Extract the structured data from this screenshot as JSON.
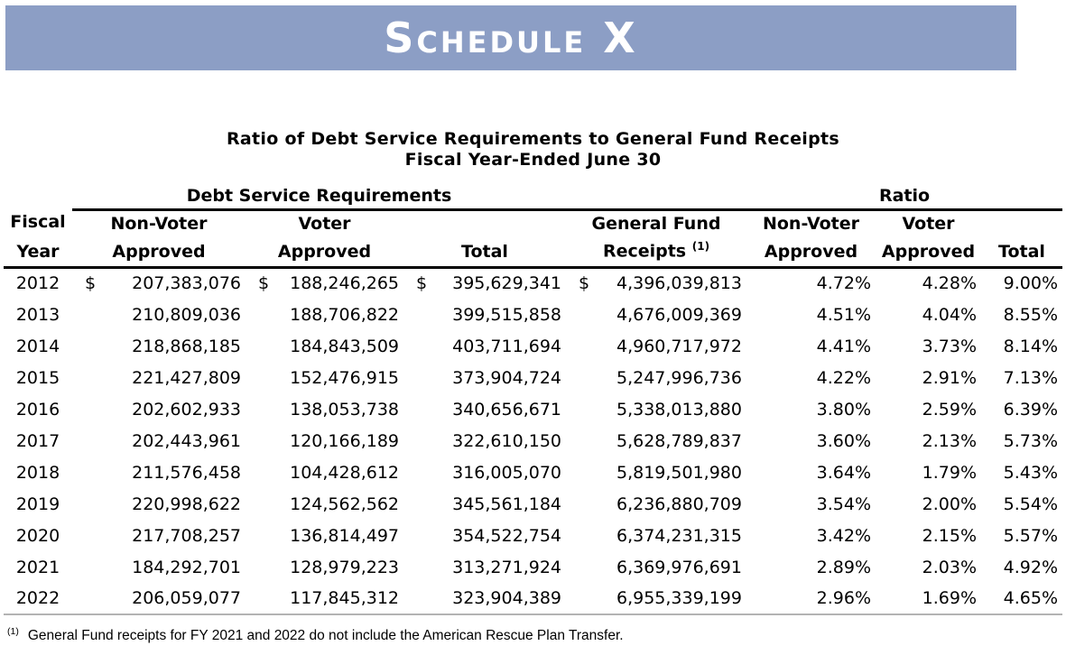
{
  "colors": {
    "banner_bg": "#8C9EC5",
    "banner_text": "#FFFFFF",
    "rule_dark": "#000000",
    "rule_light": "#B3B3B3"
  },
  "banner": {
    "title": "Schedule X"
  },
  "table": {
    "title_line1": "Ratio of Debt Service Requirements to General Fund Receipts",
    "title_line2": "Fiscal Year-Ended June 30",
    "group_headers": {
      "debt_service": "Debt Service Requirements",
      "ratio": "Ratio"
    },
    "column_headers": [
      {
        "line1": "Fiscal",
        "line2": "Year"
      },
      {
        "line1": "Non-Voter",
        "line2": "Approved"
      },
      {
        "line1": "Voter",
        "line2": "Approved"
      },
      {
        "line1": "",
        "line2": "Total"
      },
      {
        "line1": "General Fund",
        "line2": "Receipts",
        "superscript": "(1)"
      },
      {
        "line1": "Non-Voter",
        "line2": "Approved"
      },
      {
        "line1": "Voter",
        "line2": "Approved"
      },
      {
        "line1": "",
        "line2": "Total"
      }
    ],
    "rows": [
      [
        "2012",
        "$ 207,383,076",
        "$ 188,246,265",
        "$ 395,629,341",
        "$ 4,396,039,813",
        "4.72%",
        "4.28%",
        "9.00%"
      ],
      [
        "2013",
        "210,809,036",
        "188,706,822",
        "399,515,858",
        "4,676,009,369",
        "4.51%",
        "4.04%",
        "8.55%"
      ],
      [
        "2014",
        "218,868,185",
        "184,843,509",
        "403,711,694",
        "4,960,717,972",
        "4.41%",
        "3.73%",
        "8.14%"
      ],
      [
        "2015",
        "221,427,809",
        "152,476,915",
        "373,904,724",
        "5,247,996,736",
        "4.22%",
        "2.91%",
        "7.13%"
      ],
      [
        "2016",
        "202,602,933",
        "138,053,738",
        "340,656,671",
        "5,338,013,880",
        "3.80%",
        "2.59%",
        "6.39%"
      ],
      [
        "2017",
        "202,443,961",
        "120,166,189",
        "322,610,150",
        "5,628,789,837",
        "3.60%",
        "2.13%",
        "5.73%"
      ],
      [
        "2018",
        "211,576,458",
        "104,428,612",
        "316,005,070",
        "5,819,501,980",
        "3.64%",
        "1.79%",
        "5.43%"
      ],
      [
        "2019",
        "220,998,622",
        "124,562,562",
        "345,561,184",
        "6,236,880,709",
        "3.54%",
        "2.00%",
        "5.54%"
      ],
      [
        "2020",
        "217,708,257",
        "136,814,497",
        "354,522,754",
        "6,374,231,315",
        "3.42%",
        "2.15%",
        "5.57%"
      ],
      [
        "2021",
        "184,292,701",
        "128,979,223",
        "313,271,924",
        "6,369,976,691",
        "2.89%",
        "2.03%",
        "4.92%"
      ],
      [
        "2022",
        "206,059,077",
        "117,845,312",
        "323,904,389",
        "6,955,339,199",
        "2.96%",
        "1.69%",
        "4.65%"
      ]
    ]
  },
  "footnote": {
    "marker": "(1)",
    "text": "General Fund receipts for FY 2021 and 2022 do not include the American Rescue Plan Transfer."
  }
}
